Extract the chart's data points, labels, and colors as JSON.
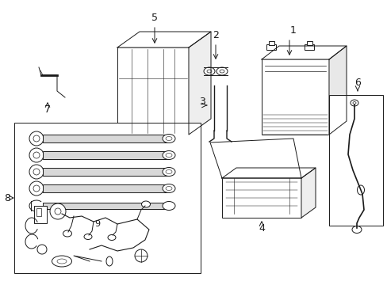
{
  "bg_color": "#ffffff",
  "line_color": "#1a1a1a",
  "fig_width": 4.89,
  "fig_height": 3.6,
  "label_fontsize": 9
}
